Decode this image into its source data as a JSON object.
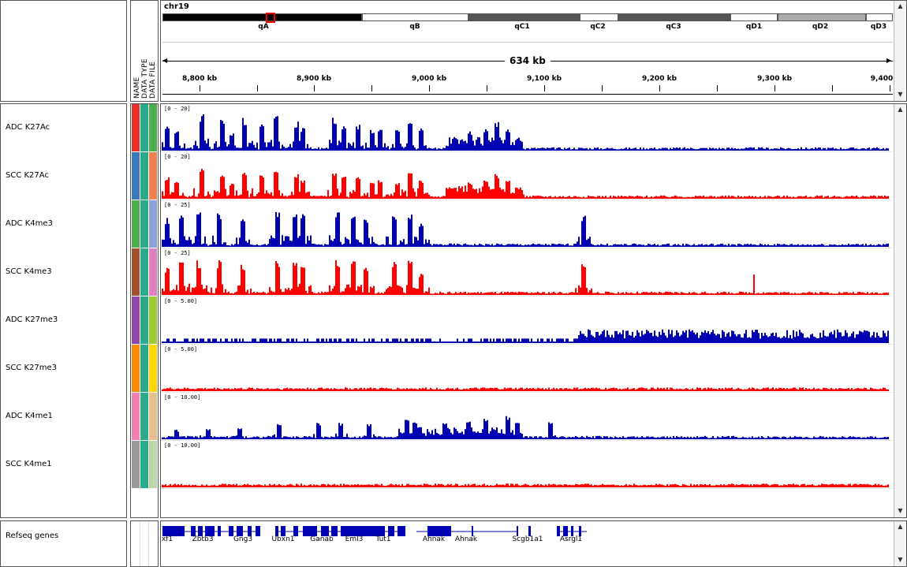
{
  "header": {
    "chromosome": "chr19",
    "attribute_labels": [
      "NAME",
      "DATA TYPE",
      "DATA FILE"
    ],
    "span": "634 kb",
    "ticks": [
      "8,800 kb",
      "8,900 kb",
      "9,000 kb",
      "9,100 kb",
      "9,200 kb",
      "9,300 kb",
      "9,400"
    ],
    "bands": [
      "qA",
      "qB",
      "qC1",
      "qC2",
      "qC3",
      "qD1",
      "qD2",
      "qD3"
    ],
    "band_colors": [
      "#000000",
      "#ffffff",
      "#555555",
      "#ffffff",
      "#555555",
      "#ffffff",
      "#aaaaaa",
      "#ffffff"
    ]
  },
  "tracks": [
    {
      "name": "ADC K27Ac",
      "range": "[0 - 20]",
      "color": "#0000b3",
      "attr_colors": [
        "#e6302a",
        "#2aaa8a",
        "#4cae4c"
      ],
      "profile": "k27ac"
    },
    {
      "name": "SCC K27Ac",
      "range": "[0 - 20]",
      "color": "#ff0000",
      "attr_colors": [
        "#3a7ab8",
        "#2aaa8a",
        "#f08050"
      ],
      "profile": "k27ac"
    },
    {
      "name": "ADC K4me3",
      "range": "[0 - 25]",
      "color": "#0000b3",
      "attr_colors": [
        "#4cae4c",
        "#2aaa8a",
        "#8aa0d8"
      ],
      "profile": "k4me3"
    },
    {
      "name": "SCC K4me3",
      "range": "[0 - 25]",
      "color": "#ff0000",
      "attr_colors": [
        "#a0522d",
        "#2aaa8a",
        "#e080c0"
      ],
      "profile": "k4me3"
    },
    {
      "name": "ADC K27me3",
      "range": "[0 - 5.00]",
      "color": "#0000b3",
      "attr_colors": [
        "#8e4aa8",
        "#2aaa8a",
        "#9acd32"
      ],
      "profile": "k27me3"
    },
    {
      "name": "SCC K27me3",
      "range": "[0 - 5.00]",
      "color": "#ff0000",
      "attr_colors": [
        "#ff8c00",
        "#2aaa8a",
        "#ffd700"
      ],
      "profile": "flat"
    },
    {
      "name": "ADC K4me1",
      "range": "[0 - 10.00]",
      "color": "#0000b3",
      "attr_colors": [
        "#f080b0",
        "#2aaa8a",
        "#e8c090"
      ],
      "profile": "k4me1"
    },
    {
      "name": "SCC K4me1",
      "range": "[0 - 10.00]",
      "color": "#ff0000",
      "attr_colors": [
        "#999999",
        "#2aaa8a",
        "#b8d8a8"
      ],
      "profile": "flat"
    }
  ],
  "genes": {
    "track_name": "Refseq genes",
    "labels": [
      "xf1",
      "Zbtb3",
      "Gng3",
      "Ubxn1",
      "Ganab",
      "Eml3",
      "Tut1",
      "Ahnak",
      "Ahnak",
      "Scgb1a1",
      "Asrgl1"
    ]
  }
}
